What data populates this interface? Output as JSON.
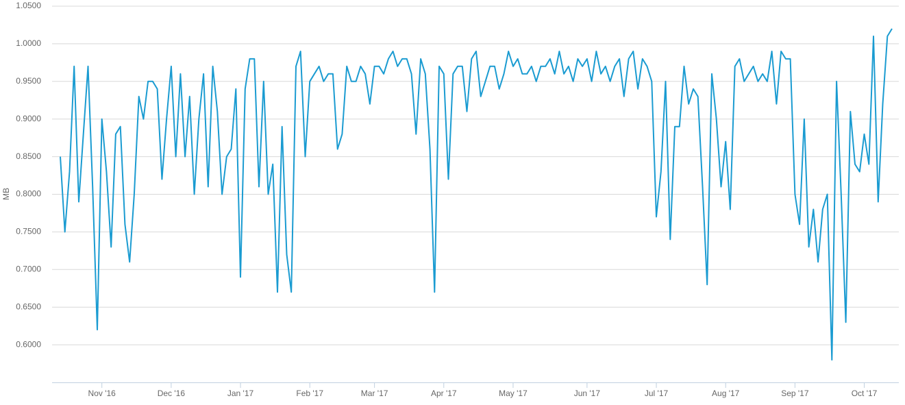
{
  "chart_data": {
    "type": "line",
    "y_label": "MB",
    "categories": [
      null,
      null,
      null,
      null,
      null,
      null,
      null,
      null,
      null,
      "Nov '16",
      null,
      null,
      null,
      null,
      null,
      null,
      null,
      null,
      null,
      null,
      null,
      null,
      null,
      null,
      "Dec '16",
      null,
      null,
      null,
      null,
      null,
      null,
      null,
      null,
      null,
      null,
      null,
      null,
      null,
      null,
      "Jan '17",
      null,
      null,
      null,
      null,
      null,
      null,
      null,
      null,
      null,
      null,
      null,
      null,
      null,
      null,
      "Feb '17",
      null,
      null,
      null,
      null,
      null,
      null,
      null,
      null,
      null,
      null,
      null,
      null,
      null,
      "Mar '17",
      null,
      null,
      null,
      null,
      null,
      null,
      null,
      null,
      null,
      null,
      null,
      null,
      null,
      null,
      "Apr '17",
      null,
      null,
      null,
      null,
      null,
      null,
      null,
      null,
      null,
      null,
      null,
      null,
      null,
      null,
      "May '17",
      null,
      null,
      null,
      null,
      null,
      null,
      null,
      null,
      null,
      null,
      null,
      null,
      null,
      null,
      null,
      "Jun '17",
      null,
      null,
      null,
      null,
      null,
      null,
      null,
      null,
      null,
      null,
      null,
      null,
      null,
      null,
      "Jul '17",
      null,
      null,
      null,
      null,
      null,
      null,
      null,
      null,
      null,
      null,
      null,
      null,
      null,
      null,
      "Aug '17",
      null,
      null,
      null,
      null,
      null,
      null,
      null,
      null,
      null,
      null,
      null,
      null,
      null,
      null,
      "Sep '17",
      null,
      null,
      null,
      null,
      null,
      null,
      null,
      null,
      null,
      null,
      null,
      null,
      null,
      null,
      "Oct '17",
      null,
      null,
      null,
      null,
      null,
      null
    ],
    "series": [
      {
        "color": "#1a9bd1",
        "values": [
          0.85,
          0.75,
          0.83,
          0.97,
          0.79,
          0.88,
          0.97,
          0.81,
          0.62,
          0.9,
          0.83,
          0.73,
          0.88,
          0.89,
          0.76,
          0.71,
          0.8,
          0.93,
          0.9,
          0.95,
          0.95,
          0.94,
          0.82,
          0.9,
          0.97,
          0.85,
          0.96,
          0.85,
          0.93,
          0.8,
          0.9,
          0.96,
          0.81,
          0.97,
          0.91,
          0.8,
          0.85,
          0.86,
          0.94,
          0.69,
          0.94,
          0.98,
          0.98,
          0.81,
          0.95,
          0.8,
          0.84,
          0.67,
          0.89,
          0.72,
          0.67,
          0.97,
          0.99,
          0.85,
          0.95,
          0.96,
          0.97,
          0.95,
          0.96,
          0.96,
          0.86,
          0.88,
          0.97,
          0.95,
          0.95,
          0.97,
          0.96,
          0.92,
          0.97,
          0.97,
          0.96,
          0.98,
          0.99,
          0.97,
          0.98,
          0.98,
          0.96,
          0.88,
          0.98,
          0.96,
          0.86,
          0.67,
          0.97,
          0.96,
          0.82,
          0.96,
          0.97,
          0.97,
          0.91,
          0.98,
          0.99,
          0.93,
          0.95,
          0.97,
          0.97,
          0.94,
          0.96,
          0.99,
          0.97,
          0.98,
          0.96,
          0.96,
          0.97,
          0.95,
          0.97,
          0.97,
          0.98,
          0.96,
          0.99,
          0.96,
          0.97,
          0.95,
          0.98,
          0.97,
          0.98,
          0.95,
          0.99,
          0.96,
          0.97,
          0.95,
          0.97,
          0.98,
          0.93,
          0.98,
          0.99,
          0.94,
          0.98,
          0.97,
          0.95,
          0.77,
          0.83,
          0.95,
          0.74,
          0.89,
          0.89,
          0.97,
          0.92,
          0.94,
          0.93,
          0.81,
          0.68,
          0.96,
          0.9,
          0.81,
          0.87,
          0.78,
          0.97,
          0.98,
          0.95,
          0.96,
          0.97,
          0.95,
          0.96,
          0.95,
          0.99,
          0.92,
          0.99,
          0.98,
          0.98,
          0.8,
          0.76,
          0.9,
          0.73,
          0.78,
          0.71,
          0.78,
          0.8,
          0.58,
          0.95,
          0.8,
          0.63,
          0.91,
          0.84,
          0.83,
          0.88,
          0.84,
          1.01,
          0.79,
          0.92,
          1.01,
          1.02
        ]
      }
    ],
    "ylim": [
      0.55,
      1.05
    ],
    "yticks": [
      {
        "value": 0.6,
        "label": "0.6000"
      },
      {
        "value": 0.65,
        "label": "0.6500"
      },
      {
        "value": 0.7,
        "label": "0.7000"
      },
      {
        "value": 0.75,
        "label": "0.7500"
      },
      {
        "value": 0.8,
        "label": "0.8000"
      },
      {
        "value": 0.85,
        "label": "0.8500"
      },
      {
        "value": 0.9,
        "label": "0.9000"
      },
      {
        "value": 0.95,
        "label": "0.9500"
      },
      {
        "value": 1.0,
        "label": "1.0000"
      },
      {
        "value": 1.05,
        "label": "1.0500"
      }
    ],
    "grid": true
  }
}
